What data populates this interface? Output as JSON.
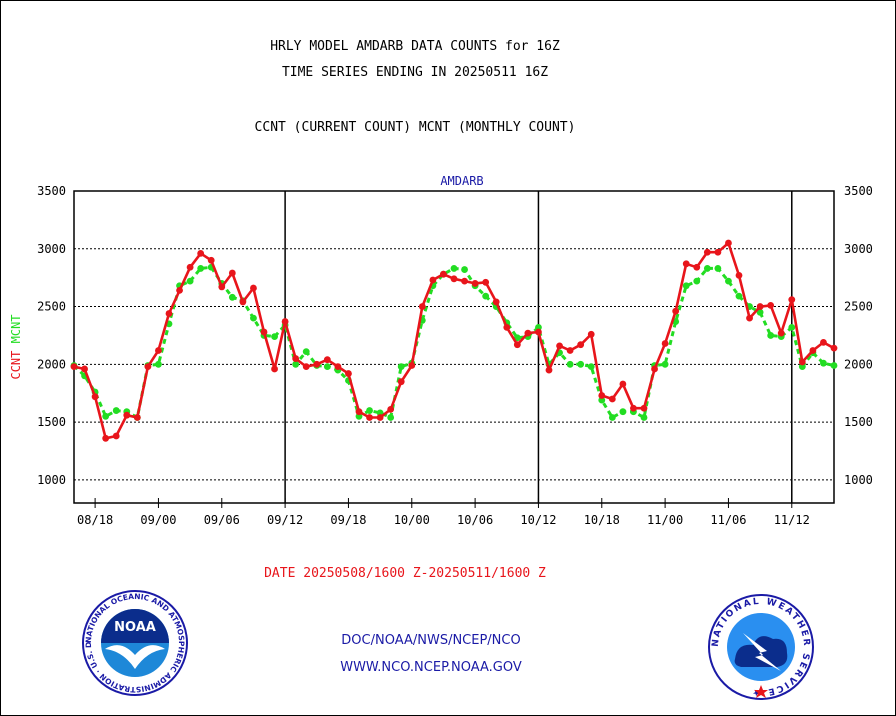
{
  "header": {
    "title_line1": "HRLY MODEL AMDARB DATA COUNTS for 16Z",
    "title_line2": "TIME SERIES ENDING IN 20250511 16Z",
    "subtitle": "CCNT (CURRENT COUNT) MCNT (MONTHLY COUNT)"
  },
  "footer": {
    "date_range": "DATE 20250508/1600 Z-20250511/1600 Z",
    "link1": "DOC/NOAA/NWS/NCEP/NCO",
    "link2": "WWW.NCO.NCEP.NOAA.GOV"
  },
  "logos": {
    "noaa_label": "NOAA",
    "noaa_ring": "NATIONAL OCEANIC AND ATMOSPHERIC ADMINISTRATION · U.S. DEPARTMENT OF COMMERCE ·",
    "nws_ring": "NATIONAL WEATHER SERVICE ★"
  },
  "colors": {
    "ccnt": "#e8151b",
    "mcnt": "#22dd22",
    "series_label": "#1a1aa6",
    "axis": "#000000"
  },
  "chart_data": {
    "type": "line",
    "title": "AMDARB",
    "ylabel_left": [
      "CCNT",
      "MCNT"
    ],
    "ylim": [
      800,
      3500
    ],
    "yticks": [
      1000,
      1500,
      2000,
      2500,
      3000,
      3500
    ],
    "x_tick_labels": [
      "08/18",
      "09/00",
      "09/06",
      "09/12",
      "09/18",
      "10/00",
      "10/06",
      "10/12",
      "10/18",
      "11/00",
      "11/06",
      "11/12"
    ],
    "day_boundaries": [
      "09/12",
      "10/12",
      "11/12"
    ],
    "grid": "horizontal dashed",
    "x_hours": [
      0,
      1,
      2,
      3,
      4,
      5,
      6,
      7,
      8,
      9,
      10,
      11,
      12,
      13,
      14,
      15,
      16,
      17,
      18,
      19,
      20,
      21,
      22,
      23,
      24,
      25,
      26,
      27,
      28,
      29,
      30,
      31,
      32,
      33,
      34,
      35,
      36,
      37,
      38,
      39,
      40,
      41,
      42,
      43,
      44,
      45,
      46,
      47,
      48,
      49,
      50,
      51,
      52,
      53,
      54,
      55,
      56,
      57,
      58,
      59,
      60,
      61,
      62,
      63,
      64,
      65,
      66,
      67,
      68,
      69,
      70,
      71,
      72
    ],
    "series": [
      {
        "name": "CCNT",
        "values": [
          1980,
          1960,
          1720,
          1360,
          1380,
          1560,
          1540,
          1980,
          2120,
          2440,
          2640,
          2840,
          2960,
          2900,
          2670,
          2790,
          2540,
          2660,
          2280,
          1960,
          2370,
          2050,
          1980,
          2000,
          2040,
          1980,
          1920,
          1590,
          1540,
          1540,
          1610,
          1850,
          1990,
          2500,
          2730,
          2780,
          2740,
          2720,
          2700,
          2710,
          2540,
          2320,
          2170,
          2270,
          2280,
          1950,
          2160,
          2120,
          2170,
          2260,
          1730,
          1700,
          1830,
          1620,
          1620,
          1960,
          2180,
          2460,
          2870,
          2840,
          2970,
          2970,
          3050,
          2770,
          2400,
          2500,
          2510,
          2270,
          2560,
          2020,
          2120,
          2190,
          2140
        ]
      },
      {
        "name": "MCNT",
        "values": [
          1990,
          1900,
          1760,
          1550,
          1600,
          1590,
          1540,
          1990,
          2000,
          2350,
          2680,
          2720,
          2830,
          2840,
          2700,
          2580,
          2550,
          2400,
          2250,
          2240,
          2340,
          2000,
          2110,
          1990,
          1980,
          1950,
          1860,
          1550,
          1600,
          1580,
          1540,
          1980,
          2010,
          2380,
          2680,
          2780,
          2830,
          2820,
          2680,
          2590,
          2500,
          2360,
          2230,
          2240,
          2320,
          2000,
          2100,
          2000,
          2000,
          1980,
          1690,
          1540,
          1590,
          1590,
          1540,
          1990,
          2000,
          2370,
          2680,
          2720,
          2830,
          2830,
          2720,
          2590,
          2500,
          2450,
          2250,
          2240,
          2320,
          1980,
          2100,
          2010,
          1990
        ]
      }
    ]
  }
}
